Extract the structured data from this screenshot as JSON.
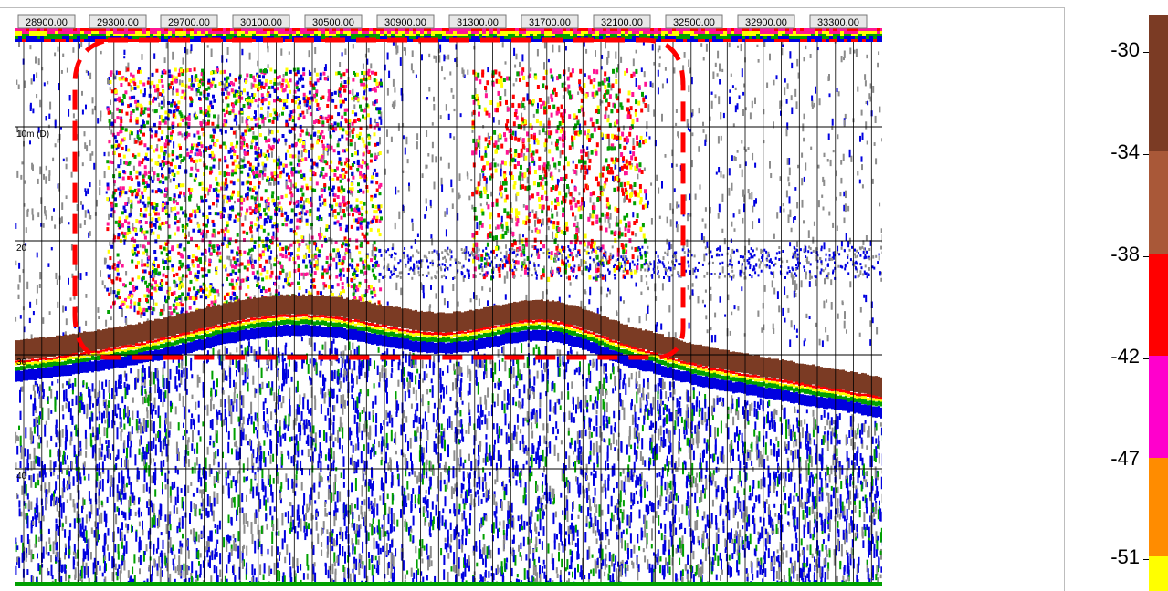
{
  "echogram": {
    "distance_labels": [
      "28900.00",
      "29300.00",
      "29700.00",
      "30100.00",
      "30500.00",
      "30900.00",
      "31300.00",
      "31700.00",
      "32100.00",
      "32500.00",
      "32900.00",
      "33300.00"
    ],
    "depth_labels": [
      "10m (D)",
      "20",
      "30",
      "40"
    ]
  },
  "colorbar": {
    "tick_labels": [
      "-30",
      "-34",
      "-38",
      "-42",
      "-47",
      "-51"
    ],
    "colors": [
      "#7b3b24",
      "#a95838",
      "#ff0000",
      "#ff00cc",
      "#ff8c00",
      "#ffff00"
    ],
    "bottom_value": -51,
    "top_value": -30
  },
  "palette": {
    "bottom_echo": "#7b3b24",
    "strong": "#ff0000",
    "magenta": "#ff1493",
    "yellow": "#ffff00",
    "green": "#00a000",
    "blue": "#0000e0",
    "grey": "#8c8c8c",
    "annotation": "#ff0000"
  }
}
